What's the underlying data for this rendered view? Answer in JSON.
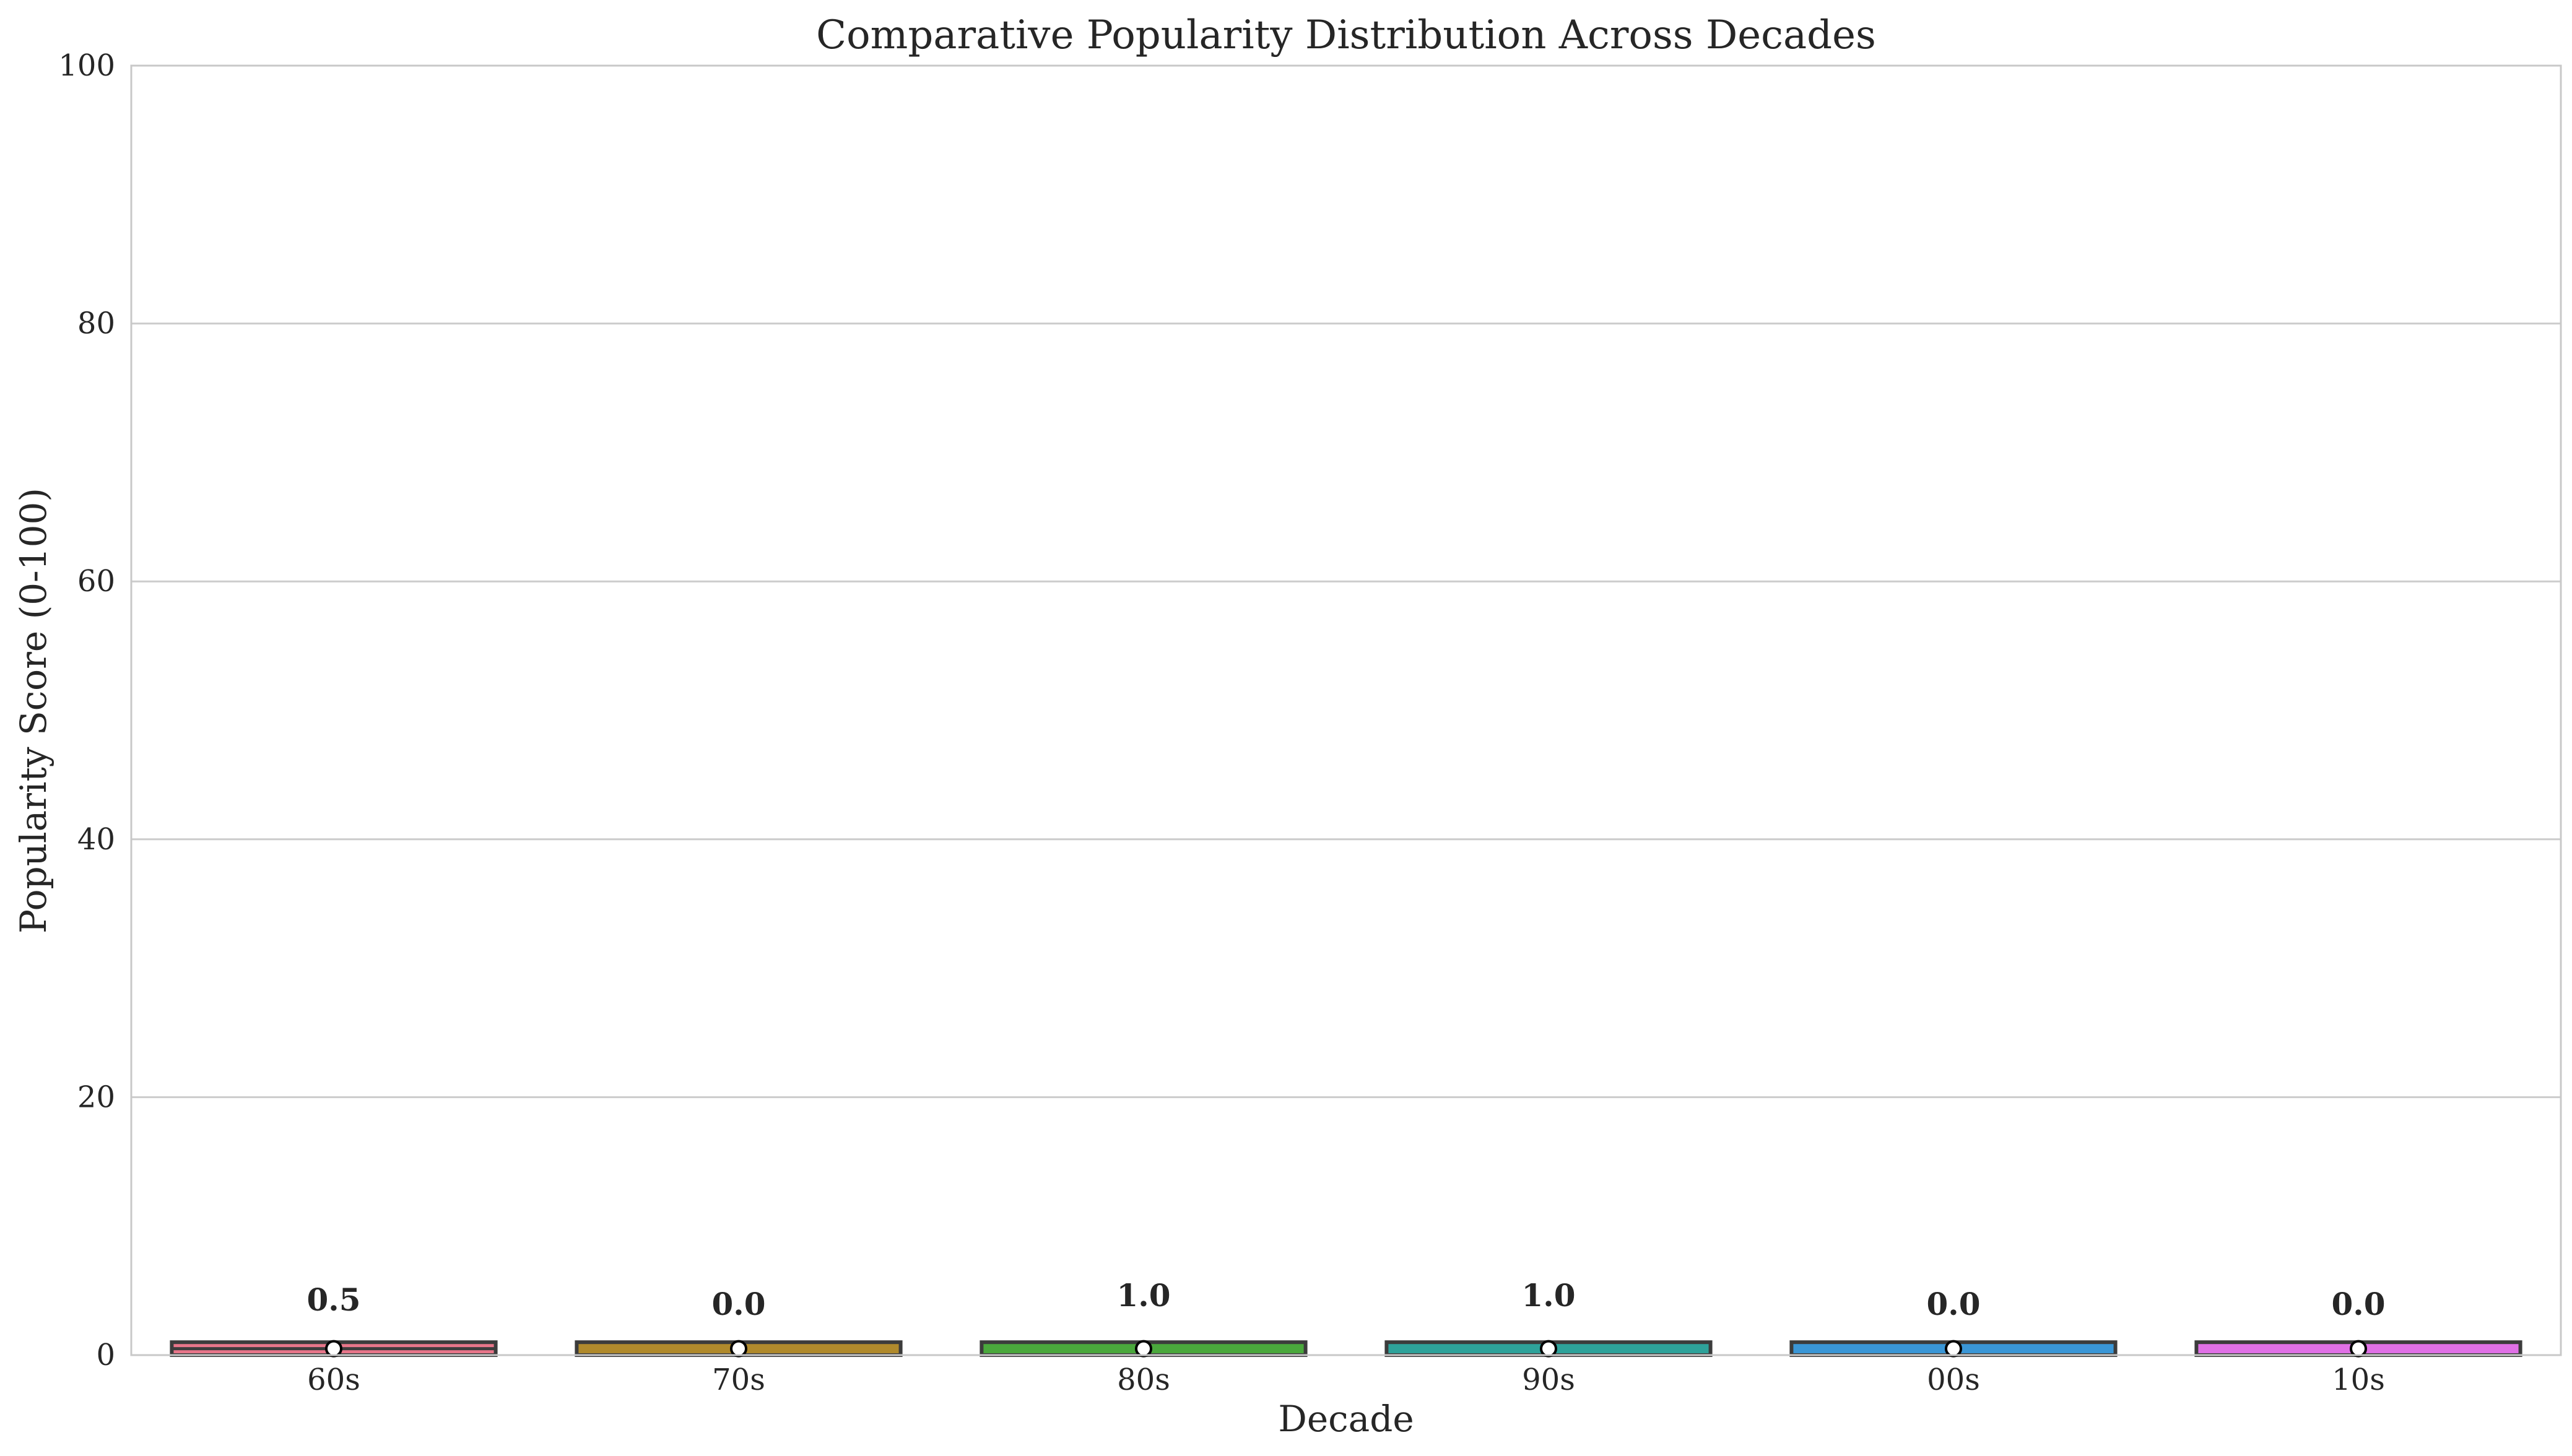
{
  "chart_data": {
    "type": "box",
    "title": "Comparative Popularity Distribution Across Decades",
    "xlabel": "Decade",
    "ylabel": "Popularity Score (0-100)",
    "ylim": [
      0,
      100
    ],
    "yticks": [
      "0",
      "20",
      "40",
      "60",
      "80",
      "100"
    ],
    "grid": "horizontal",
    "categories": [
      "60s",
      "70s",
      "80s",
      "90s",
      "00s",
      "10s"
    ],
    "colors": [
      "#e8768a",
      "#b08a2c",
      "#4aa83c",
      "#2ea29a",
      "#3a96d6",
      "#e070e6"
    ],
    "box_low": [
      0,
      0,
      0,
      0,
      0,
      0
    ],
    "box_high": [
      1,
      1,
      1,
      1,
      1,
      1
    ],
    "medians": [
      0.5,
      0.0,
      1.0,
      1.0,
      0.0,
      0.0
    ],
    "means": [
      0.5,
      0.5,
      0.5,
      0.5,
      0.5,
      0.5
    ],
    "median_labels": [
      "0.5",
      "0.0",
      "1.0",
      "1.0",
      "0.0",
      "0.0"
    ]
  }
}
